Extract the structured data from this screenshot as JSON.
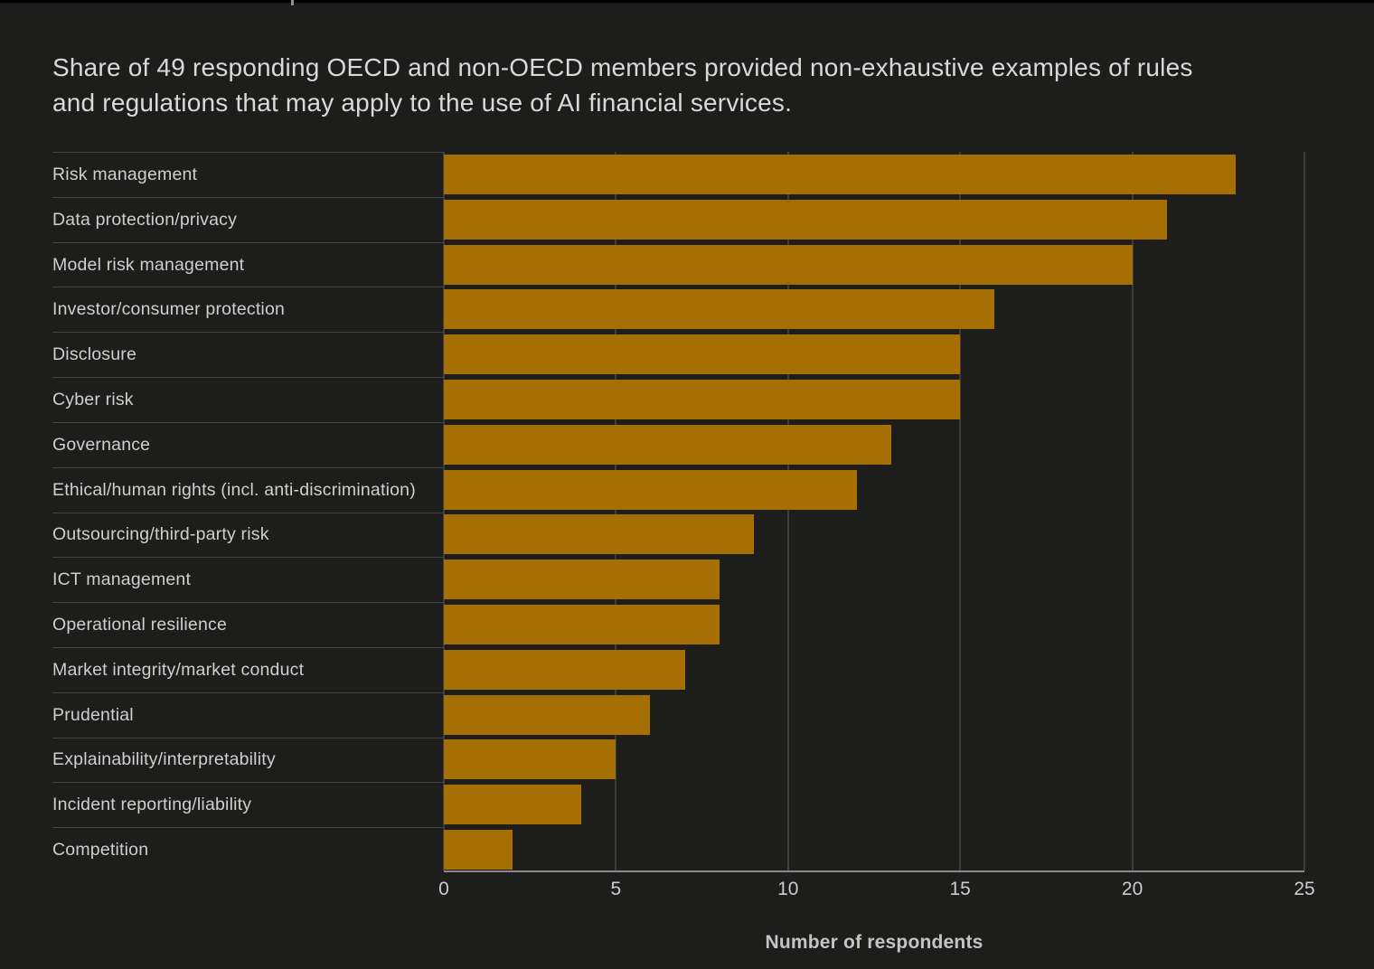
{
  "header": {
    "line1": "Share of 49 responding OECD and non-OECD members provided non-exhaustive examples of rules",
    "line2": "and regulations that may apply to the use of AI financial services."
  },
  "chart_data": {
    "type": "bar",
    "orientation": "horizontal",
    "title": "Share of 49 responding OECD and non-OECD members provided non-exhaustive examples of rules and regulations that may apply to the use of AI financial services.",
    "categories": [
      "Risk management",
      "Data protection/privacy",
      "Model risk management",
      "Investor/consumer protection",
      "Disclosure",
      "Cyber risk",
      "Governance",
      "Ethical/human rights (incl. anti-discrimination)",
      "Outsourcing/third-party risk",
      "ICT management",
      "Operational resilience",
      "Market integrity/market conduct",
      "Prudential",
      "Explainability/interpretability",
      "Incident reporting/liability",
      "Competition"
    ],
    "values": [
      23,
      21,
      20,
      16,
      15,
      15,
      13,
      12,
      9,
      8,
      8,
      7,
      6,
      5,
      4,
      2
    ],
    "xlabel": "Number of respondents",
    "ylabel": "",
    "xlim": [
      0,
      25
    ],
    "x_ticks": [
      0,
      5,
      10,
      15,
      20,
      25
    ],
    "grid": "vertical",
    "legend": "none",
    "bar_color": "#A66F04"
  },
  "colors": {
    "background": "#1D1D1B",
    "bar": "#A66F04",
    "gridline": "#3D3D3D",
    "axis_line": "#8A8A8A",
    "row_separator": "#434341",
    "title_text": "#D9D9D9",
    "label_text": "#CFCFCF",
    "tick_text": "#CCCCCC"
  }
}
